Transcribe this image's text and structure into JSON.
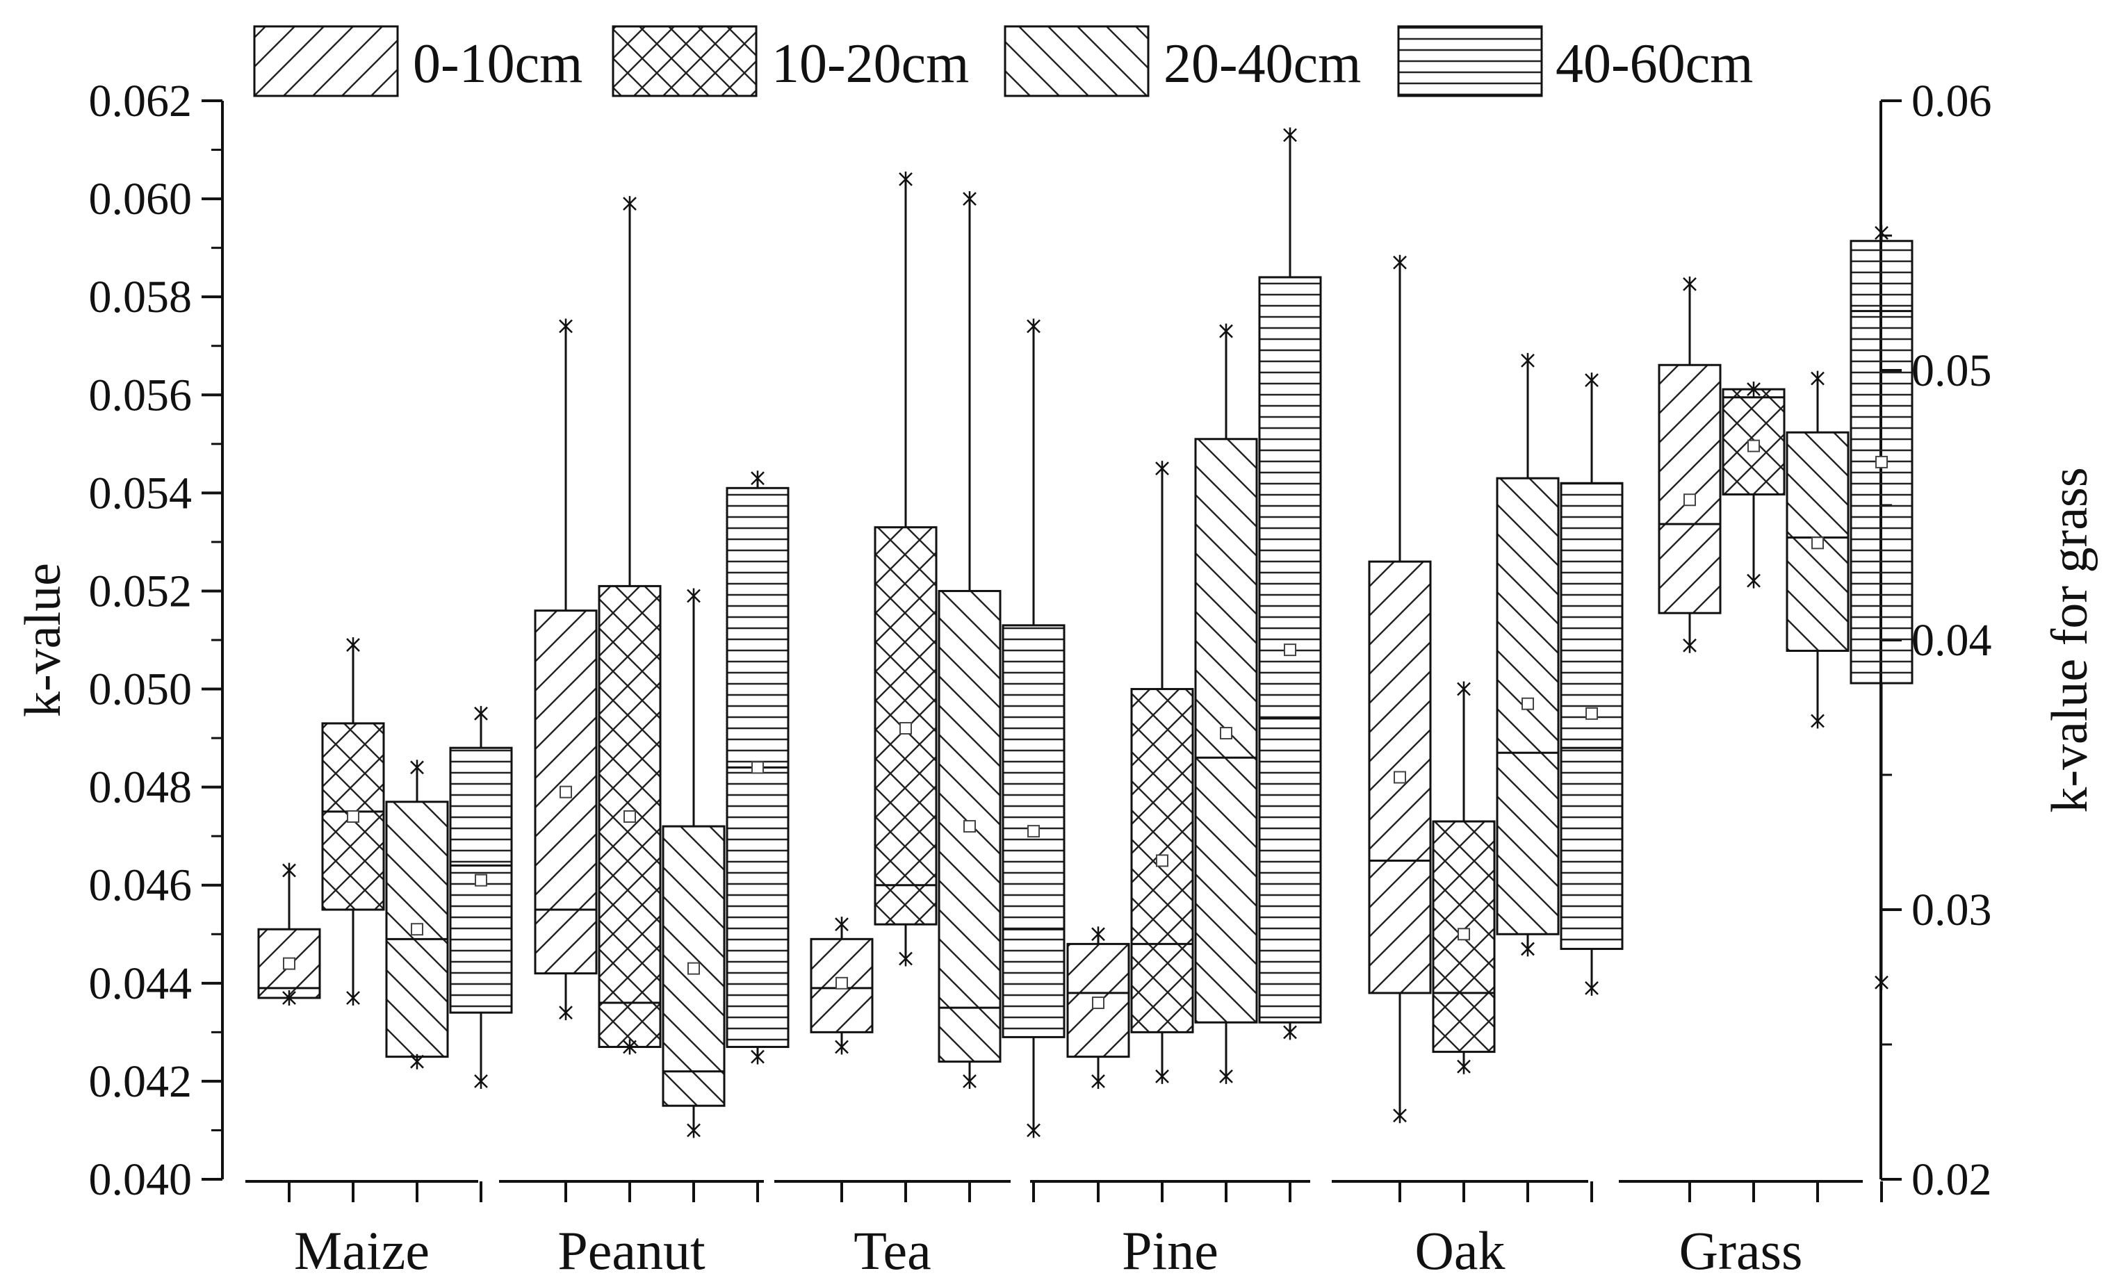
{
  "chart_data": {
    "type": "box",
    "ylabel": "k-value",
    "ylabel_right": "k-value for grass",
    "ylim": [
      0.04,
      0.062
    ],
    "ylim_right": [
      0.02,
      0.06
    ],
    "yticks": [
      "0.040",
      "0.042",
      "0.044",
      "0.046",
      "0.048",
      "0.050",
      "0.052",
      "0.054",
      "0.056",
      "0.058",
      "0.060",
      "0.062"
    ],
    "yticks_right": [
      "0.02",
      "0.03",
      "0.04",
      "0.05",
      "0.06"
    ],
    "legend_position": "top",
    "categories": [
      "Maize",
      "Peanut",
      "Tea",
      "Pine",
      "Oak",
      "Grass"
    ],
    "series": [
      {
        "name": "0-10cm",
        "pattern": "forward-diagonal"
      },
      {
        "name": "10-20cm",
        "pattern": "cross-hatch"
      },
      {
        "name": "20-40cm",
        "pattern": "back-diagonal"
      },
      {
        "name": "40-60cm",
        "pattern": "horizontal"
      }
    ],
    "boxes": [
      [
        {
          "min": 0.0437,
          "q1": 0.0437,
          "median": 0.0439,
          "q3": 0.0451,
          "max": 0.0463,
          "mean": 0.0444
        },
        {
          "min": 0.0437,
          "q1": 0.0455,
          "median": 0.0475,
          "q3": 0.0493,
          "max": 0.0509,
          "mean": 0.0474
        },
        {
          "min": 0.0424,
          "q1": 0.0425,
          "median": 0.0449,
          "q3": 0.0477,
          "max": 0.0484,
          "mean": 0.0451
        },
        {
          "min": 0.042,
          "q1": 0.0434,
          "median": 0.0464,
          "q3": 0.0488,
          "max": 0.0495,
          "mean": 0.0461
        }
      ],
      [
        {
          "min": 0.0434,
          "q1": 0.0442,
          "median": 0.0455,
          "q3": 0.0516,
          "max": 0.0574,
          "mean": 0.0479
        },
        {
          "min": 0.0427,
          "q1": 0.0427,
          "median": 0.0436,
          "q3": 0.0521,
          "max": 0.0599,
          "mean": 0.0474
        },
        {
          "min": 0.041,
          "q1": 0.0415,
          "median": 0.0422,
          "q3": 0.0472,
          "max": 0.0519,
          "mean": 0.0443
        },
        {
          "min": 0.0425,
          "q1": 0.0427,
          "median": 0.0484,
          "q3": 0.0541,
          "max": 0.0543,
          "mean": 0.0484
        }
      ],
      [
        {
          "min": 0.0427,
          "q1": 0.043,
          "median": 0.0439,
          "q3": 0.0449,
          "max": 0.0452,
          "mean": 0.044
        },
        {
          "min": 0.0445,
          "q1": 0.0452,
          "median": 0.046,
          "q3": 0.0533,
          "max": 0.0604,
          "mean": 0.0492
        },
        {
          "min": 0.042,
          "q1": 0.0424,
          "median": 0.0435,
          "q3": 0.052,
          "max": 0.06,
          "mean": 0.0472
        },
        {
          "min": 0.041,
          "q1": 0.0429,
          "median": 0.0451,
          "q3": 0.0513,
          "max": 0.0574,
          "mean": 0.0471
        }
      ],
      [
        {
          "min": 0.042,
          "q1": 0.0425,
          "median": 0.0438,
          "q3": 0.0448,
          "max": 0.045,
          "mean": 0.0436
        },
        {
          "min": 0.0421,
          "q1": 0.043,
          "median": 0.0448,
          "q3": 0.05,
          "max": 0.0545,
          "mean": 0.0465
        },
        {
          "min": 0.0421,
          "q1": 0.0432,
          "median": 0.0486,
          "q3": 0.0551,
          "max": 0.0573,
          "mean": 0.0491
        },
        {
          "min": 0.043,
          "q1": 0.0432,
          "median": 0.0494,
          "q3": 0.0584,
          "max": 0.0613,
          "mean": 0.0508
        }
      ],
      [
        {
          "min": 0.0413,
          "q1": 0.0438,
          "median": 0.0465,
          "q3": 0.0526,
          "max": 0.0587,
          "mean": 0.0482
        },
        {
          "min": 0.0423,
          "q1": 0.0426,
          "median": 0.0438,
          "q3": 0.0473,
          "max": 0.05,
          "mean": 0.045
        },
        {
          "min": 0.0447,
          "q1": 0.045,
          "median": 0.0487,
          "q3": 0.0543,
          "max": 0.0567,
          "mean": 0.0497
        },
        {
          "min": 0.0439,
          "q1": 0.0447,
          "median": 0.0488,
          "q3": 0.0542,
          "max": 0.0563,
          "mean": 0.0495
        }
      ],
      [
        {
          "min": 0.0398,
          "q1": 0.041,
          "median": 0.0443,
          "q3": 0.0502,
          "max": 0.0532,
          "mean": 0.0452
        },
        {
          "min": 0.0422,
          "q1": 0.0454,
          "median": 0.049,
          "q3": 0.0493,
          "max": 0.0493,
          "mean": 0.0472
        },
        {
          "min": 0.037,
          "q1": 0.0396,
          "median": 0.0438,
          "q3": 0.0477,
          "max": 0.0497,
          "mean": 0.0436
        },
        {
          "min": 0.0273,
          "q1": 0.0384,
          "median": 0.0522,
          "q3": 0.0548,
          "max": 0.0551,
          "mean": 0.0466
        }
      ]
    ]
  }
}
